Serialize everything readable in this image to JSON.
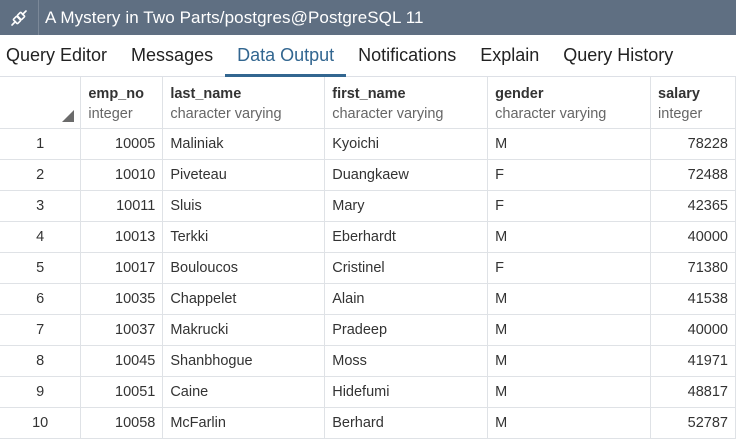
{
  "window": {
    "title": "A Mystery in Two Parts/postgres@PostgreSQL 11",
    "connection_icon": "connection-plug-icon"
  },
  "tabs": [
    {
      "label": "Query Editor",
      "active": false
    },
    {
      "label": "Messages",
      "active": false
    },
    {
      "label": "Data Output",
      "active": true
    },
    {
      "label": "Notifications",
      "active": false
    },
    {
      "label": "Explain",
      "active": false
    },
    {
      "label": "Query History",
      "active": false
    }
  ],
  "grid": {
    "columns": [
      {
        "name": "emp_no",
        "type": "integer"
      },
      {
        "name": "last_name",
        "type": "character varying"
      },
      {
        "name": "first_name",
        "type": "character varying"
      },
      {
        "name": "gender",
        "type": "character varying"
      },
      {
        "name": "salary",
        "type": "integer"
      }
    ],
    "rows": [
      {
        "n": "1",
        "emp_no": "10005",
        "last_name": "Maliniak",
        "first_name": "Kyoichi",
        "gender": "M",
        "salary": "78228"
      },
      {
        "n": "2",
        "emp_no": "10010",
        "last_name": "Piveteau",
        "first_name": "Duangkaew",
        "gender": "F",
        "salary": "72488"
      },
      {
        "n": "3",
        "emp_no": "10011",
        "last_name": "Sluis",
        "first_name": "Mary",
        "gender": "F",
        "salary": "42365"
      },
      {
        "n": "4",
        "emp_no": "10013",
        "last_name": "Terkki",
        "first_name": "Eberhardt",
        "gender": "M",
        "salary": "40000"
      },
      {
        "n": "5",
        "emp_no": "10017",
        "last_name": "Bouloucos",
        "first_name": "Cristinel",
        "gender": "F",
        "salary": "71380"
      },
      {
        "n": "6",
        "emp_no": "10035",
        "last_name": "Chappelet",
        "first_name": "Alain",
        "gender": "M",
        "salary": "41538"
      },
      {
        "n": "7",
        "emp_no": "10037",
        "last_name": "Makrucki",
        "first_name": "Pradeep",
        "gender": "M",
        "salary": "40000"
      },
      {
        "n": "8",
        "emp_no": "10045",
        "last_name": "Shanbhogue",
        "first_name": "Moss",
        "gender": "M",
        "salary": "41971"
      },
      {
        "n": "9",
        "emp_no": "10051",
        "last_name": "Caine",
        "first_name": "Hidefumi",
        "gender": "M",
        "salary": "48817"
      },
      {
        "n": "10",
        "emp_no": "10058",
        "last_name": "McFarlin",
        "first_name": "Berhard",
        "gender": "M",
        "salary": "52787"
      }
    ]
  }
}
